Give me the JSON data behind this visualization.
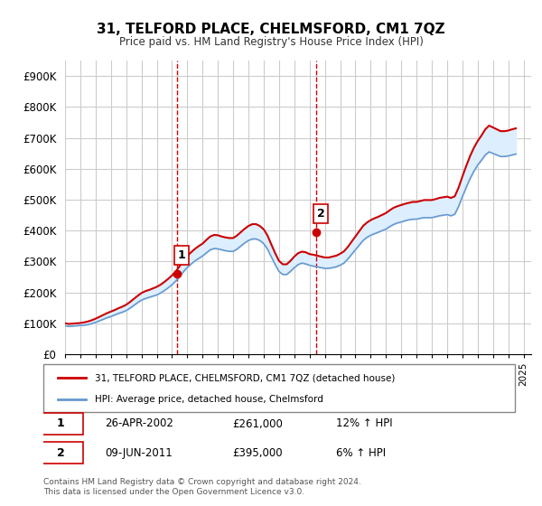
{
  "title": "31, TELFORD PLACE, CHELMSFORD, CM1 7QZ",
  "subtitle": "Price paid vs. HM Land Registry's House Price Index (HPI)",
  "ylabel_ticks": [
    "£0",
    "£100K",
    "£200K",
    "£300K",
    "£400K",
    "£500K",
    "£600K",
    "£700K",
    "£800K",
    "£900K"
  ],
  "ytick_values": [
    0,
    100000,
    200000,
    300000,
    400000,
    500000,
    600000,
    700000,
    800000,
    900000
  ],
  "ylim": [
    0,
    950000
  ],
  "xlim_start": 1995.0,
  "xlim_end": 2025.5,
  "sale1_x": 2002.32,
  "sale1_y": 261000,
  "sale2_x": 2011.44,
  "sale2_y": 395000,
  "line_color_red": "#cc0000",
  "line_color_blue": "#6699cc",
  "fill_color": "#ddeeff",
  "vline_color": "#cc0000",
  "grid_color": "#cccccc",
  "background_color": "#ffffff",
  "legend_label_red": "31, TELFORD PLACE, CHELMSFORD, CM1 7QZ (detached house)",
  "legend_label_blue": "HPI: Average price, detached house, Chelmsford",
  "sale1_label": "1",
  "sale2_label": "2",
  "sale1_date": "26-APR-2002",
  "sale1_price": "£261,000",
  "sale1_hpi": "12% ↑ HPI",
  "sale2_date": "09-JUN-2011",
  "sale2_price": "£395,000",
  "sale2_hpi": "6% ↑ HPI",
  "footer": "Contains HM Land Registry data © Crown copyright and database right 2024.\nThis data is licensed under the Open Government Licence v3.0.",
  "hpi_data_x": [
    1995.0,
    1995.25,
    1995.5,
    1995.75,
    1996.0,
    1996.25,
    1996.5,
    1996.75,
    1997.0,
    1997.25,
    1997.5,
    1997.75,
    1998.0,
    1998.25,
    1998.5,
    1998.75,
    1999.0,
    1999.25,
    1999.5,
    1999.75,
    2000.0,
    2000.25,
    2000.5,
    2000.75,
    2001.0,
    2001.25,
    2001.5,
    2001.75,
    2002.0,
    2002.25,
    2002.5,
    2002.75,
    2003.0,
    2003.25,
    2003.5,
    2003.75,
    2004.0,
    2004.25,
    2004.5,
    2004.75,
    2005.0,
    2005.25,
    2005.5,
    2005.75,
    2006.0,
    2006.25,
    2006.5,
    2006.75,
    2007.0,
    2007.25,
    2007.5,
    2007.75,
    2008.0,
    2008.25,
    2008.5,
    2008.75,
    2009.0,
    2009.25,
    2009.5,
    2009.75,
    2010.0,
    2010.25,
    2010.5,
    2010.75,
    2011.0,
    2011.25,
    2011.5,
    2011.75,
    2012.0,
    2012.25,
    2012.5,
    2012.75,
    2013.0,
    2013.25,
    2013.5,
    2013.75,
    2014.0,
    2014.25,
    2014.5,
    2014.75,
    2015.0,
    2015.25,
    2015.5,
    2015.75,
    2016.0,
    2016.25,
    2016.5,
    2016.75,
    2017.0,
    2017.25,
    2017.5,
    2017.75,
    2018.0,
    2018.25,
    2018.5,
    2018.75,
    2019.0,
    2019.25,
    2019.5,
    2019.75,
    2020.0,
    2020.25,
    2020.5,
    2020.75,
    2021.0,
    2021.25,
    2021.5,
    2021.75,
    2022.0,
    2022.25,
    2022.5,
    2022.75,
    2023.0,
    2023.25,
    2023.5,
    2023.75,
    2024.0,
    2024.25,
    2024.5
  ],
  "hpi_data_y": [
    92000,
    90000,
    91000,
    92000,
    93000,
    94000,
    96000,
    99000,
    103000,
    108000,
    113000,
    118000,
    122000,
    127000,
    132000,
    136000,
    141000,
    149000,
    158000,
    167000,
    175000,
    180000,
    184000,
    188000,
    192000,
    198000,
    206000,
    215000,
    225000,
    237000,
    252000,
    267000,
    281000,
    292000,
    302000,
    310000,
    318000,
    328000,
    338000,
    342000,
    341000,
    338000,
    335000,
    333000,
    333000,
    340000,
    350000,
    360000,
    368000,
    373000,
    373000,
    368000,
    358000,
    340000,
    315000,
    290000,
    268000,
    258000,
    258000,
    268000,
    280000,
    290000,
    295000,
    292000,
    288000,
    285000,
    283000,
    280000,
    278000,
    278000,
    280000,
    283000,
    288000,
    295000,
    308000,
    323000,
    338000,
    353000,
    368000,
    378000,
    385000,
    390000,
    395000,
    400000,
    405000,
    413000,
    420000,
    425000,
    428000,
    432000,
    435000,
    437000,
    437000,
    440000,
    442000,
    442000,
    442000,
    445000,
    448000,
    450000,
    452000,
    448000,
    453000,
    478000,
    510000,
    540000,
    568000,
    592000,
    612000,
    628000,
    645000,
    655000,
    650000,
    645000,
    640000,
    640000,
    642000,
    645000,
    648000
  ],
  "price_data_x": [
    1995.0,
    1995.25,
    1995.5,
    1995.75,
    1996.0,
    1996.25,
    1996.5,
    1996.75,
    1997.0,
    1997.25,
    1997.5,
    1997.75,
    1998.0,
    1998.25,
    1998.5,
    1998.75,
    1999.0,
    1999.25,
    1999.5,
    1999.75,
    2000.0,
    2000.25,
    2000.5,
    2000.75,
    2001.0,
    2001.25,
    2001.5,
    2001.75,
    2002.0,
    2002.25,
    2002.5,
    2002.75,
    2003.0,
    2003.25,
    2003.5,
    2003.75,
    2004.0,
    2004.25,
    2004.5,
    2004.75,
    2005.0,
    2005.25,
    2005.5,
    2005.75,
    2006.0,
    2006.25,
    2006.5,
    2006.75,
    2007.0,
    2007.25,
    2007.5,
    2007.75,
    2008.0,
    2008.25,
    2008.5,
    2008.75,
    2009.0,
    2009.25,
    2009.5,
    2009.75,
    2010.0,
    2010.25,
    2010.5,
    2010.75,
    2011.0,
    2011.25,
    2011.5,
    2011.75,
    2012.0,
    2012.25,
    2012.5,
    2012.75,
    2013.0,
    2013.25,
    2013.5,
    2013.75,
    2014.0,
    2014.25,
    2014.5,
    2014.75,
    2015.0,
    2015.25,
    2015.5,
    2015.75,
    2016.0,
    2016.25,
    2016.5,
    2016.75,
    2017.0,
    2017.25,
    2017.5,
    2017.75,
    2018.0,
    2018.25,
    2018.5,
    2018.75,
    2019.0,
    2019.25,
    2019.5,
    2019.75,
    2020.0,
    2020.25,
    2020.5,
    2020.75,
    2021.0,
    2021.25,
    2021.5,
    2021.75,
    2022.0,
    2022.25,
    2022.5,
    2022.75,
    2023.0,
    2023.25,
    2023.5,
    2023.75,
    2024.0,
    2024.25,
    2024.5
  ],
  "price_data_y": [
    100000,
    98000,
    99000,
    100000,
    101000,
    103000,
    106000,
    110000,
    115000,
    121000,
    127000,
    133000,
    138000,
    143000,
    149000,
    154000,
    160000,
    169000,
    179000,
    189000,
    198000,
    204000,
    208000,
    213000,
    218000,
    225000,
    234000,
    244000,
    255000,
    268000,
    285000,
    302000,
    318000,
    330000,
    341000,
    350000,
    358000,
    370000,
    381000,
    386000,
    385000,
    381000,
    378000,
    376000,
    376000,
    384000,
    395000,
    406000,
    415000,
    421000,
    421000,
    415000,
    404000,
    384000,
    355000,
    327000,
    302000,
    291000,
    291000,
    302000,
    316000,
    327000,
    332000,
    330000,
    324000,
    322000,
    319000,
    316000,
    313000,
    313000,
    316000,
    319000,
    325000,
    333000,
    347000,
    364000,
    381000,
    398000,
    415000,
    426000,
    434000,
    440000,
    445000,
    451000,
    457000,
    466000,
    474000,
    479000,
    483000,
    487000,
    490000,
    493000,
    493000,
    496000,
    499000,
    499000,
    499000,
    502000,
    506000,
    508000,
    510000,
    506000,
    511000,
    539000,
    575000,
    609000,
    641000,
    668000,
    690000,
    708000,
    728000,
    740000,
    734000,
    728000,
    722000,
    722000,
    724000,
    728000,
    731000
  ]
}
